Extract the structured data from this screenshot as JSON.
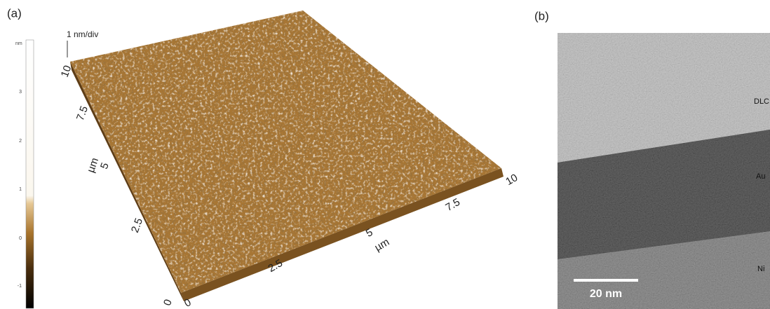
{
  "panel_a": {
    "label": "(a)",
    "colorbar": {
      "unit": "nm",
      "ticks": [
        "3",
        "2",
        "1",
        "0",
        "-1"
      ]
    },
    "scale_note": "1 nm/div",
    "y_axis": {
      "ticks": [
        "10",
        "7.5",
        "5",
        "2.5",
        "0"
      ],
      "unit": "µm"
    },
    "x_axis": {
      "ticks": [
        "0",
        "2.5",
        "5",
        "7.5",
        "10"
      ],
      "unit": "µm"
    }
  },
  "panel_b": {
    "label": "(b)",
    "layers": [
      "DLC",
      "Au",
      "Ni"
    ],
    "scale_bar": "20 nm"
  }
}
